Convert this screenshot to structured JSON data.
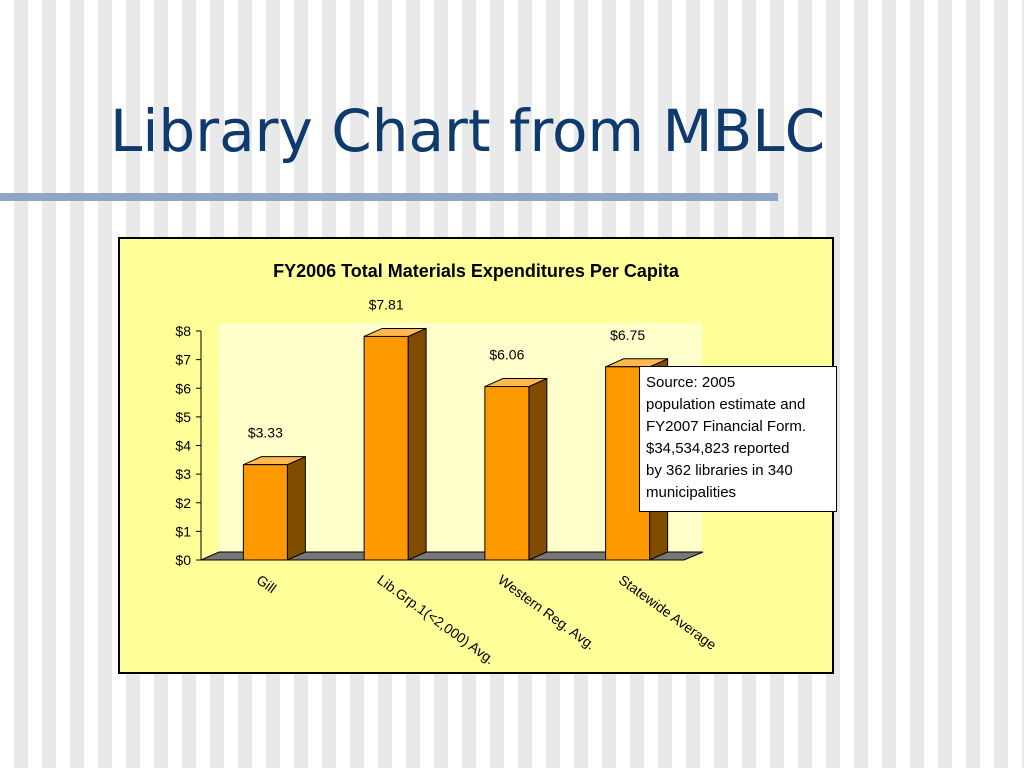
{
  "slide": {
    "title": "Library Chart from MBLC"
  },
  "note": {
    "lines": [
      "Source: 2005",
      "population estimate and",
      "FY2007 Financial Form.",
      "$34,534,823 reported",
      "by 362 libraries in 340",
      "municipalities"
    ]
  },
  "chart_data": {
    "type": "bar",
    "title": "FY2006 Total Materials Expenditures Per Capita",
    "xlabel": "",
    "ylabel": "",
    "categories": [
      "Gill",
      "Lib.Grp.1(<2,000) Avg.",
      "Western Reg. Avg.",
      "Statewide Average"
    ],
    "values": [
      3.33,
      7.81,
      6.06,
      6.75
    ],
    "data_labels": [
      "$3.33",
      "$7.81",
      "$6.06",
      "$6.75"
    ],
    "yticks": [
      "$0",
      "$1",
      "$2",
      "$3",
      "$4",
      "$5",
      "$6",
      "$7",
      "$8"
    ],
    "ylim": [
      0,
      8
    ],
    "three_d": true,
    "grid": false,
    "legend": "none",
    "colors": {
      "bar_front": "#ff9900",
      "bar_side": "#7f4c00",
      "bar_top": "#ffb84d",
      "floor": "#777777",
      "plot_wall": "#ffffcc",
      "frame_bg": "#ffff99"
    }
  }
}
